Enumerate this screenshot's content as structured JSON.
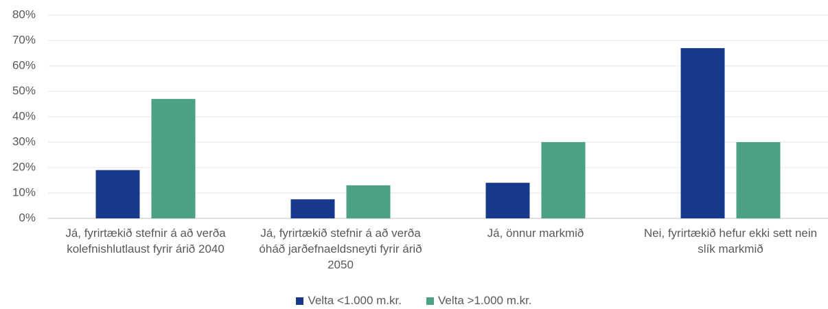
{
  "chart_data": {
    "type": "bar",
    "categories": [
      "Já, fyrirtækið stefnir á að verða kolefnishlutlaust fyrir árið 2040",
      "Já, fyrirtækið stefnir á að verða óháð jarðefnaeldsneyti fyrir árið 2050",
      "Já, önnur markmið",
      "Nei, fyrirtækið hefur ekki sett nein slík markmið"
    ],
    "series": [
      {
        "name": "Velta <1.000 m.kr.",
        "color": "#17398c",
        "values": [
          19,
          7.5,
          14,
          67
        ]
      },
      {
        "name": "Velta >1.000 m.kr.",
        "color": "#4aa283",
        "values": [
          47,
          13,
          30,
          30
        ]
      }
    ],
    "ylim": [
      0,
      80
    ],
    "yticks": [
      {
        "value": 0,
        "label": "0%"
      },
      {
        "value": 10,
        "label": "10%"
      },
      {
        "value": 20,
        "label": "20%"
      },
      {
        "value": 30,
        "label": "30%"
      },
      {
        "value": 40,
        "label": "40%"
      },
      {
        "value": 50,
        "label": "50%"
      },
      {
        "value": 60,
        "label": "60%"
      },
      {
        "value": 70,
        "label": "70%"
      },
      {
        "value": 80,
        "label": "80%"
      }
    ],
    "grid": true,
    "legend": "bottom"
  }
}
